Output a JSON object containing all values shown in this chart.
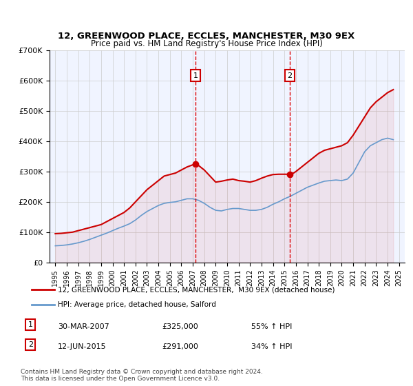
{
  "title1": "12, GREENWOOD PLACE, ECCLES, MANCHESTER, M30 9EX",
  "title2": "Price paid vs. HM Land Registry's House Price Index (HPI)",
  "legend_line1": "12, GREENWOOD PLACE, ECCLES, MANCHESTER,  M30 9EX (detached house)",
  "legend_line2": "HPI: Average price, detached house, Salford",
  "footnote": "Contains HM Land Registry data © Crown copyright and database right 2024.\nThis data is licensed under the Open Government Licence v3.0.",
  "marker1_label": "1",
  "marker1_date": "30-MAR-2007",
  "marker1_price": "£325,000",
  "marker1_hpi": "55% ↑ HPI",
  "marker2_label": "2",
  "marker2_date": "12-JUN-2015",
  "marker2_price": "£291,000",
  "marker2_hpi": "34% ↑ HPI",
  "red_color": "#cc0000",
  "blue_color": "#6699cc",
  "grid_color": "#cccccc",
  "background_color": "#f0f4ff",
  "marker_box_color": "#cc0000",
  "vline_color": "#dd0000",
  "ylim": [
    0,
    700000
  ],
  "yticks": [
    0,
    100000,
    200000,
    300000,
    400000,
    500000,
    600000,
    700000
  ],
  "ytick_labels": [
    "£0",
    "£100K",
    "£200K",
    "£300K",
    "£400K",
    "£500K",
    "£600K",
    "£700K"
  ],
  "xlim_start": 1994.5,
  "xlim_end": 2025.5,
  "marker1_x": 2007.25,
  "marker2_x": 2015.45,
  "marker1_y": 325000,
  "marker2_y": 291000,
  "red_x": [
    1995.0,
    1995.5,
    1996.0,
    1996.5,
    1997.0,
    1997.5,
    1998.0,
    1998.5,
    1999.0,
    1999.5,
    2000.0,
    2000.5,
    2001.0,
    2001.5,
    2002.0,
    2002.5,
    2003.0,
    2003.5,
    2004.0,
    2004.5,
    2005.0,
    2005.5,
    2006.0,
    2006.5,
    2007.0,
    2007.25,
    2007.5,
    2008.0,
    2008.5,
    2009.0,
    2009.5,
    2010.0,
    2010.5,
    2011.0,
    2011.5,
    2012.0,
    2012.5,
    2013.0,
    2013.5,
    2014.0,
    2014.5,
    2015.0,
    2015.45,
    2015.8,
    2016.0,
    2016.5,
    2017.0,
    2017.5,
    2018.0,
    2018.5,
    2019.0,
    2019.5,
    2020.0,
    2020.5,
    2021.0,
    2021.5,
    2022.0,
    2022.5,
    2023.0,
    2023.5,
    2024.0,
    2024.5
  ],
  "red_y": [
    95000,
    96000,
    98000,
    100000,
    105000,
    110000,
    115000,
    120000,
    125000,
    135000,
    145000,
    155000,
    165000,
    180000,
    200000,
    220000,
    240000,
    255000,
    270000,
    285000,
    290000,
    295000,
    305000,
    315000,
    322000,
    325000,
    320000,
    305000,
    285000,
    265000,
    268000,
    272000,
    275000,
    270000,
    268000,
    265000,
    270000,
    278000,
    285000,
    290000,
    291000,
    291000,
    291000,
    295000,
    300000,
    315000,
    330000,
    345000,
    360000,
    370000,
    375000,
    380000,
    385000,
    395000,
    420000,
    450000,
    480000,
    510000,
    530000,
    545000,
    560000,
    570000
  ],
  "blue_x": [
    1995.0,
    1995.5,
    1996.0,
    1996.5,
    1997.0,
    1997.5,
    1998.0,
    1998.5,
    1999.0,
    1999.5,
    2000.0,
    2000.5,
    2001.0,
    2001.5,
    2002.0,
    2002.5,
    2003.0,
    2003.5,
    2004.0,
    2004.5,
    2005.0,
    2005.5,
    2006.0,
    2006.5,
    2007.0,
    2007.5,
    2008.0,
    2008.5,
    2009.0,
    2009.5,
    2010.0,
    2010.5,
    2011.0,
    2011.5,
    2012.0,
    2012.5,
    2013.0,
    2013.5,
    2014.0,
    2014.5,
    2015.0,
    2015.5,
    2016.0,
    2016.5,
    2017.0,
    2017.5,
    2018.0,
    2018.5,
    2019.0,
    2019.5,
    2020.0,
    2020.5,
    2021.0,
    2021.5,
    2022.0,
    2022.5,
    2023.0,
    2023.5,
    2024.0,
    2024.5
  ],
  "blue_y": [
    55000,
    56000,
    58000,
    61000,
    65000,
    70000,
    76000,
    83000,
    90000,
    97000,
    105000,
    113000,
    120000,
    128000,
    140000,
    155000,
    168000,
    178000,
    188000,
    195000,
    198000,
    200000,
    205000,
    210000,
    210000,
    205000,
    195000,
    182000,
    172000,
    170000,
    175000,
    178000,
    178000,
    175000,
    172000,
    172000,
    175000,
    182000,
    192000,
    200000,
    210000,
    218000,
    228000,
    238000,
    248000,
    255000,
    262000,
    268000,
    270000,
    272000,
    270000,
    275000,
    295000,
    330000,
    365000,
    385000,
    395000,
    405000,
    410000,
    405000
  ]
}
